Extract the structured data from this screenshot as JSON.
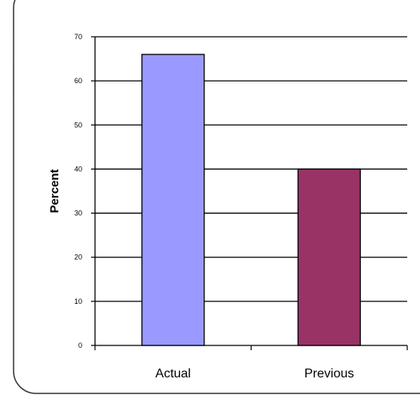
{
  "chart_data": {
    "type": "bar",
    "categories": [
      "Actual",
      "Previous"
    ],
    "values": [
      66,
      40
    ],
    "ylabel": "Percent",
    "xlabel": "",
    "title": "",
    "ylim": [
      0,
      70
    ],
    "yticks": [
      0,
      10,
      20,
      30,
      40,
      50,
      60,
      70
    ],
    "bar_colors": [
      "#9999ff",
      "#993366"
    ],
    "grid": true,
    "legend": "none"
  },
  "colors": {
    "frame_border": "#333333",
    "gridline": "#000000",
    "bar_border": "#000000"
  }
}
